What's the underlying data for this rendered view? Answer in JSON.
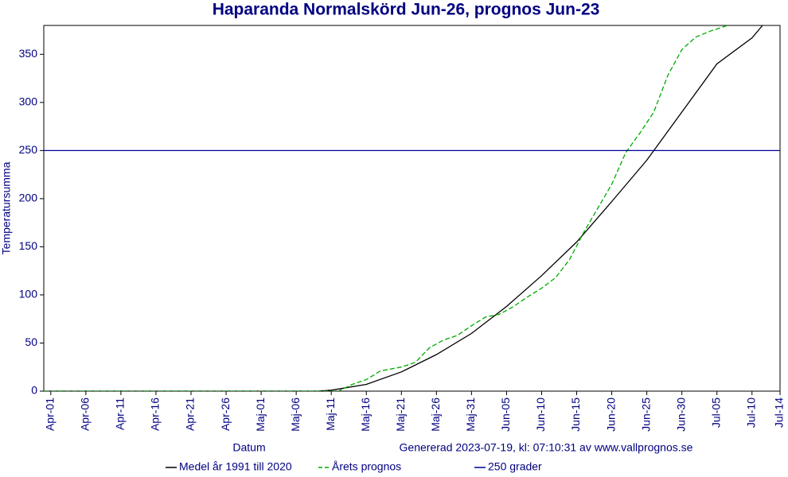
{
  "chart_data": {
    "type": "line",
    "title": "Haparanda Normalskörd Jun-26, prognos Jun-23",
    "ylabel": "Temperatursumma",
    "xlabel": "Datum",
    "annotation": "Genererad 2023-07-19, kl: 07:10:31 av www.vallprognos.se",
    "xlim": [
      -1,
      104
    ],
    "ylim": [
      0,
      380
    ],
    "yticks": [
      0,
      50,
      100,
      150,
      200,
      250,
      300,
      350
    ],
    "xticks": [
      {
        "value": 0,
        "label": "Apr-01"
      },
      {
        "value": 5,
        "label": "Apr-06"
      },
      {
        "value": 10,
        "label": "Apr-11"
      },
      {
        "value": 15,
        "label": "Apr-16"
      },
      {
        "value": 20,
        "label": "Apr-21"
      },
      {
        "value": 25,
        "label": "Apr-26"
      },
      {
        "value": 30,
        "label": "Maj-01"
      },
      {
        "value": 35,
        "label": "Maj-06"
      },
      {
        "value": 40,
        "label": "Maj-11"
      },
      {
        "value": 45,
        "label": "Maj-16"
      },
      {
        "value": 50,
        "label": "Maj-21"
      },
      {
        "value": 55,
        "label": "Maj-26"
      },
      {
        "value": 60,
        "label": "Maj-31"
      },
      {
        "value": 65,
        "label": "Jun-05"
      },
      {
        "value": 70,
        "label": "Jun-10"
      },
      {
        "value": 75,
        "label": "Jun-15"
      },
      {
        "value": 80,
        "label": "Jun-20"
      },
      {
        "value": 85,
        "label": "Jun-25"
      },
      {
        "value": 90,
        "label": "Jun-30"
      },
      {
        "value": 95,
        "label": "Jul-05"
      },
      {
        "value": 100,
        "label": "Jul-10"
      },
      {
        "value": 104,
        "label": "Jul-14"
      }
    ],
    "series": [
      {
        "name": "Medel år 1991 till 2020",
        "color": "#000000",
        "dash": false,
        "x": [
          -1,
          38,
          40,
          45,
          50,
          55,
          60,
          65,
          70,
          75,
          80,
          85,
          90,
          95,
          100,
          101.5
        ],
        "values": [
          0,
          0,
          1,
          7,
          20,
          38,
          60,
          88,
          120,
          155,
          197,
          240,
          290,
          340,
          367,
          380
        ]
      },
      {
        "name": "Årets prognos",
        "color": "#00aa00",
        "dash": true,
        "x": [
          -1,
          41,
          43,
          45,
          47,
          50,
          52,
          54,
          56,
          58,
          60,
          62,
          64,
          66,
          68,
          70,
          72,
          74,
          76,
          78,
          80,
          82,
          84,
          86,
          88,
          90,
          92,
          94,
          96.5
        ],
        "values": [
          0,
          0,
          7,
          12,
          21,
          25,
          30,
          45,
          53,
          58,
          68,
          77,
          80,
          88,
          98,
          107,
          118,
          137,
          165,
          190,
          215,
          248,
          268,
          290,
          328,
          355,
          368,
          374,
          380
        ]
      },
      {
        "name": "250 grader",
        "color": "#000099",
        "dash": false,
        "x": [
          -1,
          104
        ],
        "values": [
          250,
          250
        ]
      }
    ]
  }
}
